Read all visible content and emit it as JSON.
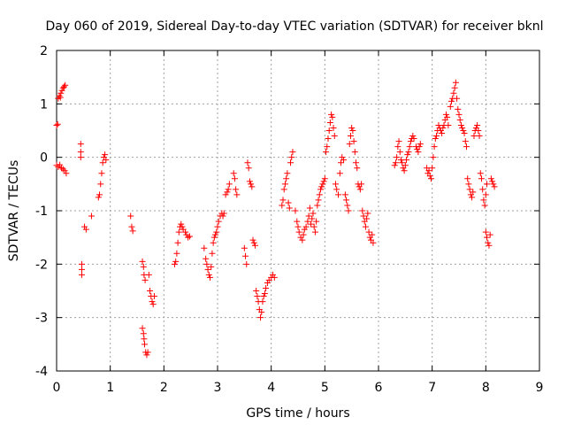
{
  "chart_data": {
    "type": "scatter",
    "title": "Day 060 of 2019, Sidereal Day-to-day VTEC variation (SDTVAR) for receiver bknl",
    "xlabel": "GPS time / hours",
    "ylabel": "SDTVAR / TECUs",
    "xlim": [
      0,
      9
    ],
    "ylim": [
      -4,
      2
    ],
    "xticks": [
      "0",
      "1",
      "2",
      "3",
      "4",
      "5",
      "6",
      "7",
      "8",
      "9"
    ],
    "yticks": [
      "-4",
      "-3",
      "-2",
      "-1",
      "0",
      "1",
      "2"
    ],
    "grid": true,
    "marker": "+",
    "color": "#ff0000",
    "series": [
      {
        "name": "SDTVAR",
        "points": [
          [
            0.0,
            0.6
          ],
          [
            0.02,
            0.62
          ],
          [
            0.03,
            1.1
          ],
          [
            0.05,
            1.15
          ],
          [
            0.07,
            1.12
          ],
          [
            0.08,
            1.2
          ],
          [
            0.1,
            1.25
          ],
          [
            0.12,
            1.3
          ],
          [
            0.14,
            1.32
          ],
          [
            0.16,
            1.35
          ],
          [
            0.0,
            -0.15
          ],
          [
            0.03,
            -0.18
          ],
          [
            0.06,
            -0.14
          ],
          [
            0.09,
            -0.2
          ],
          [
            0.12,
            -0.22
          ],
          [
            0.15,
            -0.25
          ],
          [
            0.18,
            -0.3
          ],
          [
            0.45,
            0.25
          ],
          [
            0.45,
            0.1
          ],
          [
            0.45,
            0.0
          ],
          [
            0.47,
            -2.0
          ],
          [
            0.47,
            -2.1
          ],
          [
            0.47,
            -2.2
          ],
          [
            0.52,
            -1.3
          ],
          [
            0.55,
            -1.35
          ],
          [
            0.65,
            -1.1
          ],
          [
            0.78,
            -0.75
          ],
          [
            0.8,
            -0.7
          ],
          [
            0.82,
            -0.5
          ],
          [
            0.84,
            -0.3
          ],
          [
            0.86,
            -0.1
          ],
          [
            0.88,
            0.0
          ],
          [
            0.9,
            0.05
          ],
          [
            0.92,
            -0.05
          ],
          [
            1.38,
            -1.1
          ],
          [
            1.4,
            -1.3
          ],
          [
            1.42,
            -1.38
          ],
          [
            1.6,
            -1.95
          ],
          [
            1.62,
            -2.05
          ],
          [
            1.63,
            -2.2
          ],
          [
            1.65,
            -2.3
          ],
          [
            1.6,
            -3.2
          ],
          [
            1.62,
            -3.3
          ],
          [
            1.63,
            -3.4
          ],
          [
            1.64,
            -3.5
          ],
          [
            1.66,
            -3.65
          ],
          [
            1.68,
            -3.7
          ],
          [
            1.7,
            -3.65
          ],
          [
            1.72,
            -2.2
          ],
          [
            1.74,
            -2.5
          ],
          [
            1.76,
            -2.6
          ],
          [
            1.78,
            -2.7
          ],
          [
            1.8,
            -2.75
          ],
          [
            1.82,
            -2.6
          ],
          [
            2.2,
            -2.0
          ],
          [
            2.22,
            -1.95
          ],
          [
            2.24,
            -1.8
          ],
          [
            2.26,
            -1.6
          ],
          [
            2.28,
            -1.4
          ],
          [
            2.3,
            -1.3
          ],
          [
            2.32,
            -1.25
          ],
          [
            2.34,
            -1.3
          ],
          [
            2.36,
            -1.35
          ],
          [
            2.4,
            -1.4
          ],
          [
            2.42,
            -1.45
          ],
          [
            2.45,
            -1.5
          ],
          [
            2.48,
            -1.48
          ],
          [
            2.75,
            -1.7
          ],
          [
            2.78,
            -1.9
          ],
          [
            2.8,
            -2.0
          ],
          [
            2.82,
            -2.1
          ],
          [
            2.84,
            -2.2
          ],
          [
            2.86,
            -2.25
          ],
          [
            2.88,
            -2.05
          ],
          [
            2.9,
            -1.8
          ],
          [
            2.92,
            -1.6
          ],
          [
            2.94,
            -1.5
          ],
          [
            2.96,
            -1.45
          ],
          [
            2.98,
            -1.4
          ],
          [
            3.0,
            -1.3
          ],
          [
            3.02,
            -1.2
          ],
          [
            3.05,
            -1.1
          ],
          [
            3.08,
            -1.05
          ],
          [
            3.1,
            -1.1
          ],
          [
            3.12,
            -1.05
          ],
          [
            3.15,
            -0.7
          ],
          [
            3.18,
            -0.65
          ],
          [
            3.2,
            -0.6
          ],
          [
            3.22,
            -0.5
          ],
          [
            3.3,
            -0.3
          ],
          [
            3.32,
            -0.4
          ],
          [
            3.34,
            -0.6
          ],
          [
            3.36,
            -0.7
          ],
          [
            3.5,
            -1.7
          ],
          [
            3.52,
            -1.85
          ],
          [
            3.54,
            -2.0
          ],
          [
            3.56,
            -0.1
          ],
          [
            3.58,
            -0.2
          ],
          [
            3.6,
            -0.45
          ],
          [
            3.62,
            -0.5
          ],
          [
            3.64,
            -0.55
          ],
          [
            3.66,
            -1.55
          ],
          [
            3.68,
            -1.6
          ],
          [
            3.7,
            -1.65
          ],
          [
            3.72,
            -2.5
          ],
          [
            3.74,
            -2.6
          ],
          [
            3.76,
            -2.7
          ],
          [
            3.78,
            -2.85
          ],
          [
            3.8,
            -3.0
          ],
          [
            3.82,
            -2.9
          ],
          [
            3.84,
            -2.7
          ],
          [
            3.86,
            -2.6
          ],
          [
            3.88,
            -2.55
          ],
          [
            3.9,
            -2.45
          ],
          [
            3.93,
            -2.35
          ],
          [
            3.96,
            -2.3
          ],
          [
            4.0,
            -2.25
          ],
          [
            4.03,
            -2.2
          ],
          [
            4.06,
            -2.25
          ],
          [
            4.2,
            -0.9
          ],
          [
            4.22,
            -0.8
          ],
          [
            4.24,
            -0.6
          ],
          [
            4.26,
            -0.5
          ],
          [
            4.28,
            -0.4
          ],
          [
            4.3,
            -0.3
          ],
          [
            4.32,
            -0.85
          ],
          [
            4.34,
            -0.95
          ],
          [
            4.36,
            -0.1
          ],
          [
            4.38,
            0.0
          ],
          [
            4.4,
            0.1
          ],
          [
            4.45,
            -1.0
          ],
          [
            4.48,
            -1.2
          ],
          [
            4.5,
            -1.3
          ],
          [
            4.52,
            -1.4
          ],
          [
            4.55,
            -1.5
          ],
          [
            4.58,
            -1.55
          ],
          [
            4.6,
            -1.45
          ],
          [
            4.62,
            -1.35
          ],
          [
            4.65,
            -1.3
          ],
          [
            4.68,
            -1.2
          ],
          [
            4.7,
            -1.1
          ],
          [
            4.72,
            -0.95
          ],
          [
            4.74,
            -1.25
          ],
          [
            4.76,
            -1.15
          ],
          [
            4.78,
            -1.05
          ],
          [
            4.8,
            -1.3
          ],
          [
            4.82,
            -1.4
          ],
          [
            4.84,
            -1.2
          ],
          [
            4.86,
            -0.9
          ],
          [
            4.88,
            -0.8
          ],
          [
            4.9,
            -0.7
          ],
          [
            4.92,
            -0.6
          ],
          [
            4.94,
            -0.55
          ],
          [
            4.96,
            -0.5
          ],
          [
            4.98,
            -0.45
          ],
          [
            5.0,
            -0.4
          ],
          [
            5.02,
            0.1
          ],
          [
            5.04,
            0.2
          ],
          [
            5.06,
            0.35
          ],
          [
            5.08,
            0.5
          ],
          [
            5.1,
            0.65
          ],
          [
            5.12,
            0.8
          ],
          [
            5.14,
            0.75
          ],
          [
            5.16,
            0.55
          ],
          [
            5.18,
            0.4
          ],
          [
            5.2,
            -0.5
          ],
          [
            5.22,
            -0.6
          ],
          [
            5.25,
            -0.7
          ],
          [
            5.28,
            -0.3
          ],
          [
            5.3,
            -0.1
          ],
          [
            5.32,
            0.0
          ],
          [
            5.35,
            -0.05
          ],
          [
            5.38,
            -0.7
          ],
          [
            5.4,
            -0.8
          ],
          [
            5.42,
            -0.9
          ],
          [
            5.44,
            -1.0
          ],
          [
            5.46,
            0.25
          ],
          [
            5.48,
            0.4
          ],
          [
            5.5,
            0.55
          ],
          [
            5.52,
            0.5
          ],
          [
            5.54,
            0.3
          ],
          [
            5.56,
            0.1
          ],
          [
            5.58,
            -0.1
          ],
          [
            5.6,
            -0.2
          ],
          [
            5.62,
            -0.5
          ],
          [
            5.64,
            -0.55
          ],
          [
            5.66,
            -0.6
          ],
          [
            5.68,
            -0.5
          ],
          [
            5.7,
            -1.0
          ],
          [
            5.72,
            -1.1
          ],
          [
            5.74,
            -1.2
          ],
          [
            5.76,
            -1.3
          ],
          [
            5.78,
            -1.15
          ],
          [
            5.8,
            -1.05
          ],
          [
            5.82,
            -1.4
          ],
          [
            5.84,
            -1.5
          ],
          [
            5.86,
            -1.55
          ],
          [
            5.88,
            -1.45
          ],
          [
            5.9,
            -1.6
          ],
          [
            6.3,
            -0.15
          ],
          [
            6.32,
            -0.1
          ],
          [
            6.34,
            0.0
          ],
          [
            6.36,
            0.2
          ],
          [
            6.38,
            0.3
          ],
          [
            6.4,
            0.1
          ],
          [
            6.42,
            -0.05
          ],
          [
            6.44,
            -0.1
          ],
          [
            6.46,
            -0.2
          ],
          [
            6.48,
            -0.25
          ],
          [
            6.5,
            -0.15
          ],
          [
            6.52,
            -0.05
          ],
          [
            6.54,
            0.05
          ],
          [
            6.56,
            0.1
          ],
          [
            6.58,
            0.2
          ],
          [
            6.6,
            0.3
          ],
          [
            6.62,
            0.35
          ],
          [
            6.64,
            0.4
          ],
          [
            6.66,
            0.35
          ],
          [
            6.7,
            0.2
          ],
          [
            6.72,
            0.15
          ],
          [
            6.74,
            0.1
          ],
          [
            6.76,
            0.2
          ],
          [
            6.78,
            0.25
          ],
          [
            6.9,
            -0.2
          ],
          [
            6.92,
            -0.3
          ],
          [
            6.94,
            -0.25
          ],
          [
            6.96,
            -0.35
          ],
          [
            6.98,
            -0.4
          ],
          [
            7.0,
            -0.2
          ],
          [
            7.02,
            0.0
          ],
          [
            7.04,
            0.2
          ],
          [
            7.06,
            0.35
          ],
          [
            7.08,
            0.4
          ],
          [
            7.1,
            0.5
          ],
          [
            7.12,
            0.6
          ],
          [
            7.14,
            0.55
          ],
          [
            7.16,
            0.5
          ],
          [
            7.18,
            0.45
          ],
          [
            7.2,
            0.55
          ],
          [
            7.22,
            0.6
          ],
          [
            7.24,
            0.7
          ],
          [
            7.26,
            0.8
          ],
          [
            7.28,
            0.75
          ],
          [
            7.3,
            0.6
          ],
          [
            7.34,
            0.95
          ],
          [
            7.36,
            1.05
          ],
          [
            7.38,
            1.1
          ],
          [
            7.4,
            1.2
          ],
          [
            7.42,
            1.3
          ],
          [
            7.44,
            1.4
          ],
          [
            7.46,
            1.1
          ],
          [
            7.48,
            0.9
          ],
          [
            7.5,
            0.8
          ],
          [
            7.52,
            0.7
          ],
          [
            7.54,
            0.6
          ],
          [
            7.56,
            0.55
          ],
          [
            7.58,
            0.5
          ],
          [
            7.6,
            0.45
          ],
          [
            7.62,
            0.3
          ],
          [
            7.64,
            0.2
          ],
          [
            7.66,
            -0.4
          ],
          [
            7.68,
            -0.5
          ],
          [
            7.7,
            -0.6
          ],
          [
            7.72,
            -0.7
          ],
          [
            7.74,
            -0.75
          ],
          [
            7.76,
            -0.65
          ],
          [
            7.78,
            0.4
          ],
          [
            7.8,
            0.5
          ],
          [
            7.82,
            0.55
          ],
          [
            7.84,
            0.6
          ],
          [
            7.86,
            0.5
          ],
          [
            7.88,
            0.4
          ],
          [
            7.9,
            -0.3
          ],
          [
            7.92,
            -0.4
          ],
          [
            7.94,
            -0.6
          ],
          [
            7.96,
            -0.8
          ],
          [
            7.98,
            -0.9
          ],
          [
            8.0,
            -0.7
          ],
          [
            8.02,
            -0.5
          ],
          [
            8.0,
            -1.4
          ],
          [
            8.02,
            -1.5
          ],
          [
            8.04,
            -1.6
          ],
          [
            8.06,
            -1.65
          ],
          [
            8.08,
            -1.45
          ],
          [
            8.1,
            -0.4
          ],
          [
            8.12,
            -0.45
          ],
          [
            8.14,
            -0.5
          ],
          [
            8.16,
            -0.55
          ]
        ]
      }
    ]
  }
}
